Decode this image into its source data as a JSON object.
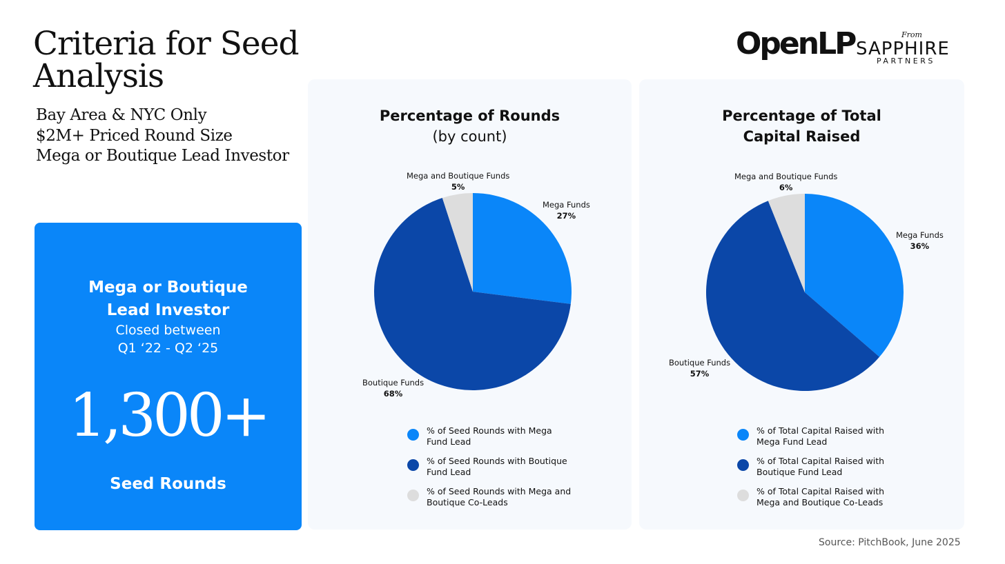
{
  "title": "Criteria for Seed Analysis",
  "criteria": [
    "Bay Area & NYC Only",
    "$2M+ Priced Round Size",
    "Mega or Boutique Lead Investor"
  ],
  "logos": {
    "openlp": "OpenLP",
    "from": "From",
    "sapphire": "SAPPHIRE",
    "partners": "PARTNERS"
  },
  "bluebox": {
    "heading_line1": "Mega or Boutique",
    "heading_line2": "Lead Investor",
    "sub_line1": "Closed between",
    "sub_line2": "Q1 ‘22 - Q2 ‘25",
    "big_number": "1,300+",
    "footer": "Seed Rounds",
    "color": "#0a86f9"
  },
  "colors": {
    "mega": "#0a86f9",
    "boutique": "#0b47a8",
    "coleads": "#dddddd"
  },
  "chart_data": [
    {
      "type": "pie",
      "title": "Percentage of Rounds",
      "subtitle": "(by count)",
      "slices": [
        {
          "label": "Mega Funds",
          "value": 27,
          "display": "27%",
          "color": "#0a86f9"
        },
        {
          "label": "Boutique Funds",
          "value": 68,
          "display": "68%",
          "color": "#0b47a8"
        },
        {
          "label": "Mega and Boutique Funds",
          "value": 5,
          "display": "5%",
          "color": "#dddddd"
        }
      ],
      "legend": [
        {
          "text": "% of Seed Rounds with Mega Fund Lead",
          "color": "#0a86f9"
        },
        {
          "text": "% of Seed Rounds with Boutique Fund Lead",
          "color": "#0b47a8"
        },
        {
          "text": "% of Seed Rounds with Mega and Boutique Co-Leads",
          "color": "#dddddd"
        }
      ],
      "legend_placement": "bottom"
    },
    {
      "type": "pie",
      "title": "Percentage of Total Capital Raised",
      "subtitle": "",
      "slices": [
        {
          "label": "Mega Funds",
          "value": 36,
          "display": "36%",
          "color": "#0a86f9"
        },
        {
          "label": "Boutique Funds",
          "value": 57,
          "display": "57%",
          "color": "#0b47a8"
        },
        {
          "label": "Mega and Boutique Funds",
          "value": 6,
          "display": "6%",
          "color": "#dddddd"
        }
      ],
      "legend": [
        {
          "text": "% of Total Capital Raised with Mega Fund Lead",
          "color": "#0a86f9"
        },
        {
          "text": "% of Total Capital Raised with Boutique Fund Lead",
          "color": "#0b47a8"
        },
        {
          "text": "% of Total Capital Raised with Mega and Boutique Co-Leads",
          "color": "#dddddd"
        }
      ],
      "legend_placement": "bottom"
    }
  ],
  "source": "Source: PitchBook, June 2025"
}
